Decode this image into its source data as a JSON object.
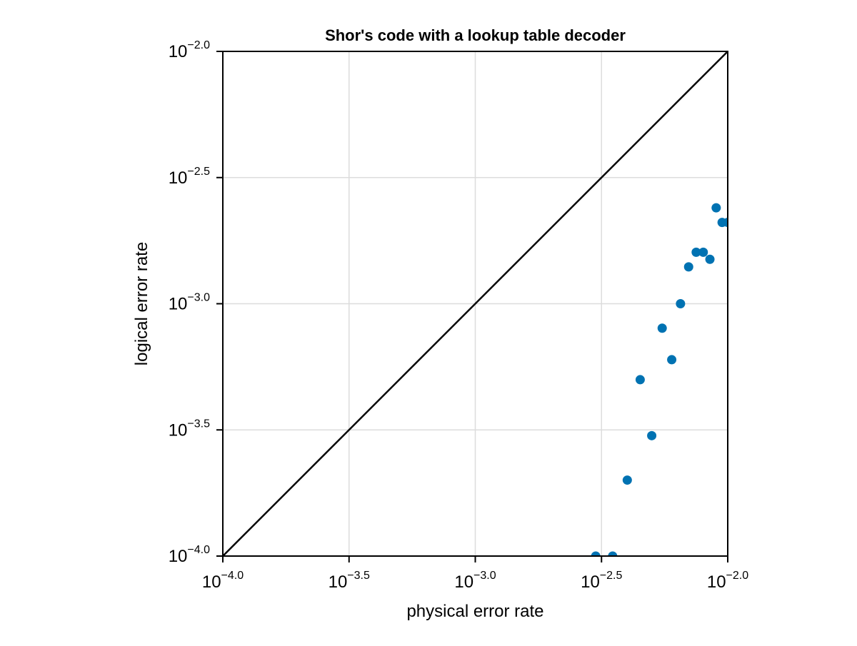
{
  "chart_data": {
    "type": "scatter",
    "title": "Shor's code with a lookup table decoder",
    "xlabel": "physical error rate",
    "ylabel": "logical error rate",
    "xscale": "log10",
    "yscale": "log10",
    "xlim": [
      0.0001,
      0.01
    ],
    "ylim": [
      0.0001,
      0.01
    ],
    "grid": true,
    "x_ticks": [
      {
        "base": "10",
        "exp": "−4.0",
        "value": -4.0
      },
      {
        "base": "10",
        "exp": "−3.5",
        "value": -3.5
      },
      {
        "base": "10",
        "exp": "−3.0",
        "value": -3.0
      },
      {
        "base": "10",
        "exp": "−2.5",
        "value": -2.5
      },
      {
        "base": "10",
        "exp": "−2.0",
        "value": -2.0
      }
    ],
    "y_ticks": [
      {
        "base": "10",
        "exp": "−4.0",
        "value": -4.0
      },
      {
        "base": "10",
        "exp": "−3.5",
        "value": -3.5
      },
      {
        "base": "10",
        "exp": "−3.0",
        "value": -3.0
      },
      {
        "base": "10",
        "exp": "−2.5",
        "value": -2.5
      },
      {
        "base": "10",
        "exp": "−2.0",
        "value": -2.0
      }
    ],
    "reference_line": {
      "type": "y=x",
      "color": "#000000"
    },
    "series": [
      {
        "color": "#0072b2",
        "x": [
          0.003,
          0.0035,
          0.004,
          0.0045,
          0.005,
          0.0055,
          0.006,
          0.0065,
          0.007,
          0.0075,
          0.008,
          0.0085,
          0.009,
          0.0095,
          0.01
        ],
        "y": [
          0.0001,
          0.0001,
          0.0002,
          0.0005,
          0.0003,
          0.0008,
          0.0006,
          0.001,
          0.0014,
          0.0016,
          0.0016,
          0.0015,
          0.0024,
          0.0021,
          0.0021
        ]
      }
    ]
  }
}
